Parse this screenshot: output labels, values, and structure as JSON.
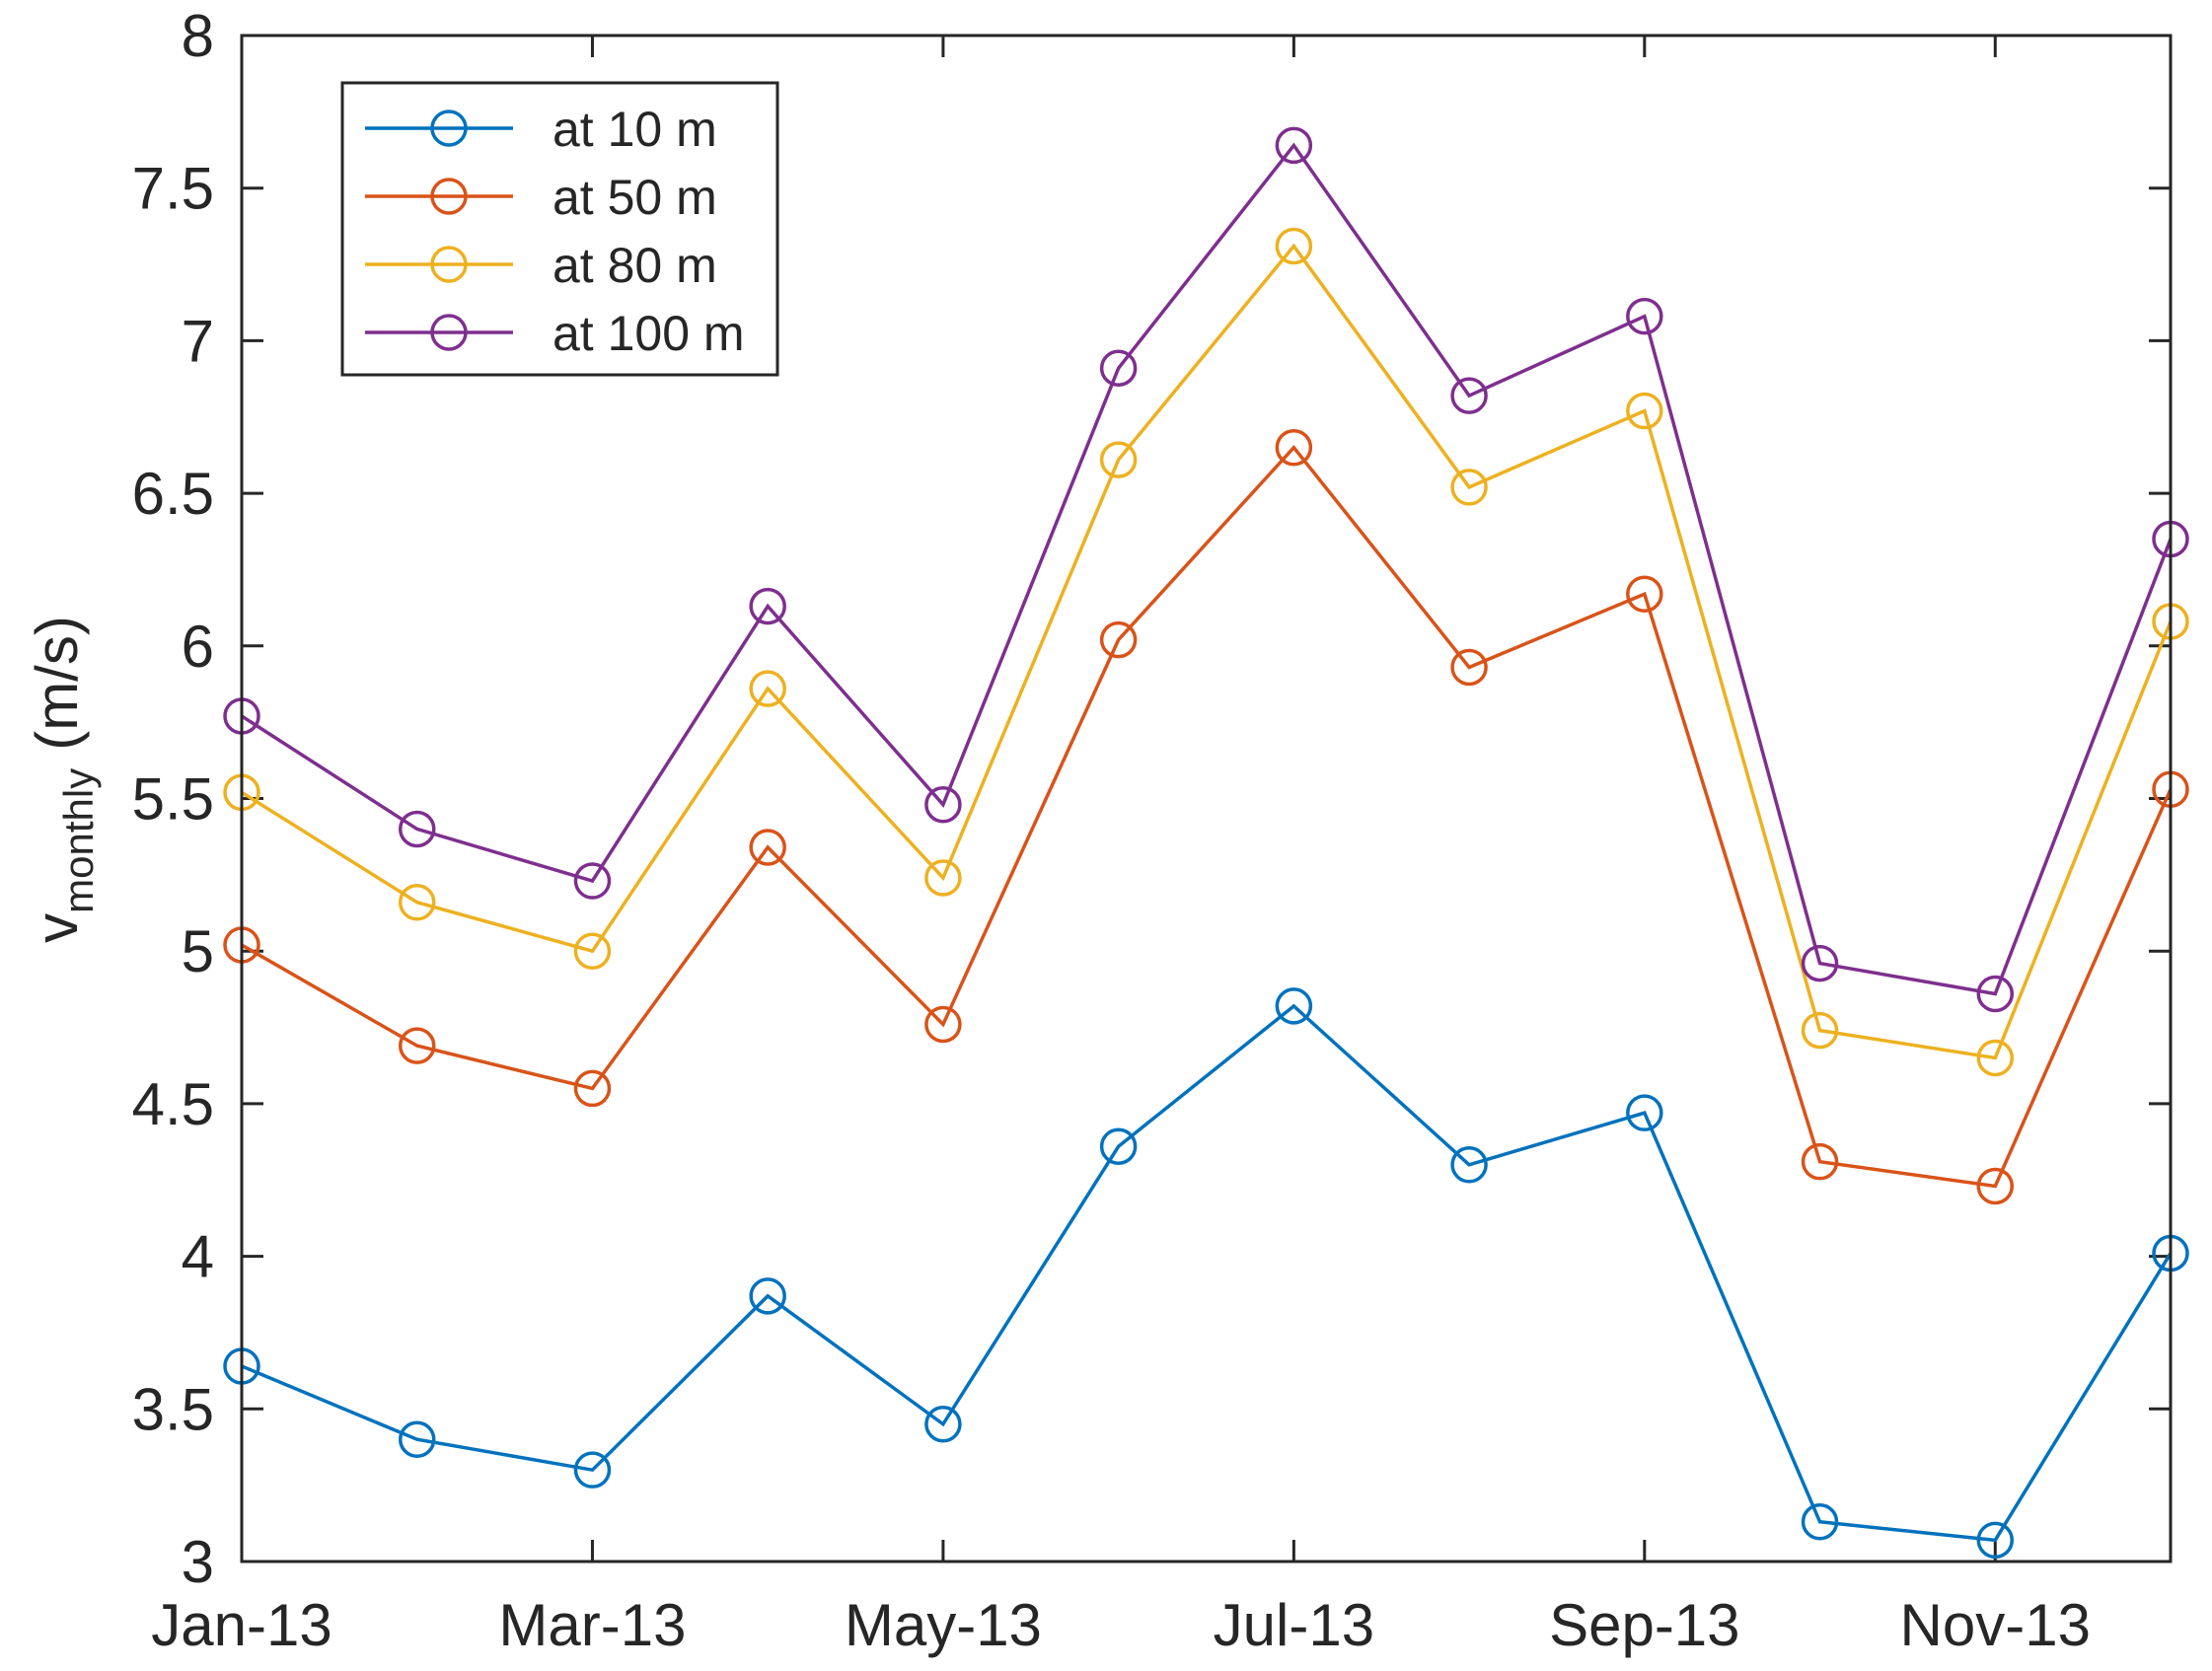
{
  "chart_data": {
    "type": "line",
    "title": "",
    "xlabel": "",
    "ylabel": {
      "main": "v",
      "subscript": "monthly",
      "unit": "(m/s)"
    },
    "x": [
      "Jan-13",
      "Feb-13",
      "Mar-13",
      "Apr-13",
      "May-13",
      "Jun-13",
      "Jul-13",
      "Aug-13",
      "Sep-13",
      "Oct-13",
      "Nov-13",
      "Dec-13"
    ],
    "x_tick_labels": [
      "Jan-13",
      "",
      "Mar-13",
      "",
      "May-13",
      "",
      "Jul-13",
      "",
      "Sep-13",
      "",
      "Nov-13",
      ""
    ],
    "ylim": [
      3,
      8
    ],
    "y_ticks": [
      3,
      3.5,
      4,
      4.5,
      5,
      5.5,
      6,
      6.5,
      7,
      7.5,
      8
    ],
    "y_tick_labels": [
      "3",
      "3.5",
      "4",
      "4.5",
      "5",
      "5.5",
      "6",
      "6.5",
      "7",
      "7.5",
      "8"
    ],
    "grid": false,
    "legend_position": "top-left",
    "marker": "circle",
    "series": [
      {
        "name": "at 10 m",
        "color": "#0072BD",
        "values": [
          3.64,
          3.4,
          3.3,
          3.87,
          3.45,
          4.36,
          4.82,
          4.3,
          4.47,
          3.13,
          3.07,
          4.01
        ]
      },
      {
        "name": "at 50 m",
        "color": "#D95319",
        "values": [
          5.02,
          4.69,
          4.55,
          5.34,
          4.76,
          6.02,
          6.65,
          5.93,
          6.17,
          4.31,
          4.23,
          5.53
        ]
      },
      {
        "name": "at 80 m",
        "color": "#EDB120",
        "values": [
          5.52,
          5.16,
          5.0,
          5.86,
          5.24,
          6.61,
          7.31,
          6.52,
          6.77,
          4.74,
          4.65,
          6.08
        ]
      },
      {
        "name": "at 100 m",
        "color": "#7E2F8E",
        "values": [
          5.77,
          5.4,
          5.23,
          6.13,
          5.48,
          6.91,
          7.64,
          6.82,
          7.08,
          4.96,
          4.86,
          6.35
        ]
      }
    ]
  }
}
